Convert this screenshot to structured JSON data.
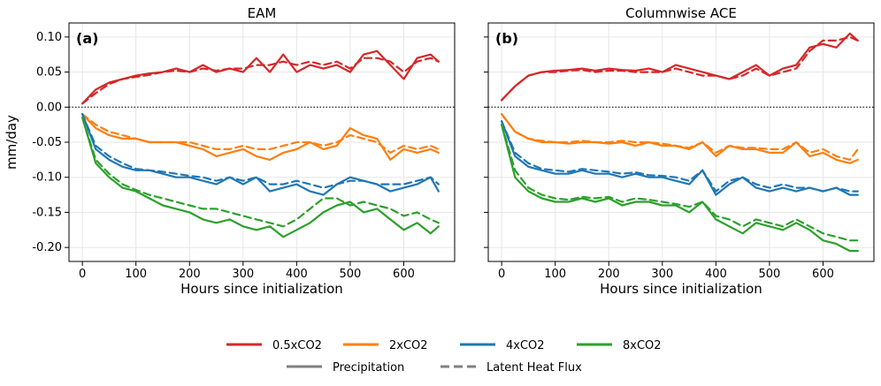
{
  "chart_data": [
    {
      "type": "line",
      "title": "EAM",
      "panel_label": "(a)",
      "xlabel": "Hours since initialization",
      "ylabel": "mm/day",
      "xlim": [
        -25,
        695
      ],
      "ylim": [
        -0.22,
        0.12
      ],
      "xticks": [
        "0",
        "100",
        "200",
        "300",
        "400",
        "500",
        "600"
      ],
      "yticks": [
        "0.10",
        "0.05",
        "0.00",
        "-0.05",
        "-0.10",
        "-0.15",
        "-0.20"
      ],
      "grid": true,
      "zero_line": true,
      "x": [
        0,
        25,
        50,
        75,
        100,
        125,
        150,
        175,
        200,
        225,
        250,
        275,
        300,
        325,
        350,
        375,
        400,
        425,
        450,
        475,
        500,
        525,
        550,
        575,
        600,
        625,
        650,
        665
      ],
      "series": [
        {
          "scenario": "0.5xCO2",
          "variable": "Precipitation",
          "values": [
            0.005,
            0.025,
            0.035,
            0.04,
            0.045,
            0.048,
            0.05,
            0.055,
            0.05,
            0.06,
            0.05,
            0.055,
            0.05,
            0.07,
            0.05,
            0.075,
            0.05,
            0.06,
            0.055,
            0.06,
            0.05,
            0.075,
            0.08,
            0.06,
            0.04,
            0.07,
            0.075,
            0.065
          ]
        },
        {
          "scenario": "0.5xCO2",
          "variable": "Latent Heat Flux",
          "values": [
            0.005,
            0.02,
            0.033,
            0.04,
            0.043,
            0.046,
            0.05,
            0.052,
            0.05,
            0.055,
            0.052,
            0.055,
            0.055,
            0.06,
            0.06,
            0.065,
            0.06,
            0.065,
            0.06,
            0.065,
            0.055,
            0.07,
            0.07,
            0.065,
            0.05,
            0.065,
            0.07,
            0.065
          ]
        },
        {
          "scenario": "2xCO2",
          "variable": "Precipitation",
          "values": [
            -0.01,
            -0.03,
            -0.04,
            -0.045,
            -0.045,
            -0.05,
            -0.05,
            -0.05,
            -0.055,
            -0.06,
            -0.07,
            -0.065,
            -0.06,
            -0.07,
            -0.075,
            -0.065,
            -0.06,
            -0.05,
            -0.06,
            -0.055,
            -0.03,
            -0.04,
            -0.045,
            -0.075,
            -0.06,
            -0.065,
            -0.06,
            -0.065
          ]
        },
        {
          "scenario": "2xCO2",
          "variable": "Latent Heat Flux",
          "values": [
            -0.01,
            -0.025,
            -0.035,
            -0.04,
            -0.045,
            -0.05,
            -0.05,
            -0.05,
            -0.05,
            -0.055,
            -0.06,
            -0.06,
            -0.055,
            -0.06,
            -0.06,
            -0.055,
            -0.05,
            -0.05,
            -0.055,
            -0.05,
            -0.04,
            -0.045,
            -0.05,
            -0.065,
            -0.055,
            -0.06,
            -0.055,
            -0.06
          ]
        },
        {
          "scenario": "4xCO2",
          "variable": "Precipitation",
          "values": [
            -0.01,
            -0.06,
            -0.075,
            -0.085,
            -0.09,
            -0.09,
            -0.095,
            -0.1,
            -0.1,
            -0.105,
            -0.11,
            -0.1,
            -0.11,
            -0.1,
            -0.12,
            -0.115,
            -0.11,
            -0.12,
            -0.125,
            -0.11,
            -0.1,
            -0.105,
            -0.11,
            -0.12,
            -0.115,
            -0.11,
            -0.1,
            -0.12
          ]
        },
        {
          "scenario": "4xCO2",
          "variable": "Latent Heat Flux",
          "values": [
            -0.01,
            -0.055,
            -0.07,
            -0.08,
            -0.088,
            -0.09,
            -0.092,
            -0.095,
            -0.098,
            -0.1,
            -0.105,
            -0.1,
            -0.105,
            -0.1,
            -0.11,
            -0.11,
            -0.105,
            -0.11,
            -0.115,
            -0.11,
            -0.105,
            -0.105,
            -0.11,
            -0.11,
            -0.11,
            -0.105,
            -0.1,
            -0.11
          ]
        },
        {
          "scenario": "8xCO2",
          "variable": "Precipitation",
          "values": [
            -0.015,
            -0.08,
            -0.1,
            -0.115,
            -0.12,
            -0.13,
            -0.14,
            -0.145,
            -0.15,
            -0.16,
            -0.165,
            -0.16,
            -0.17,
            -0.175,
            -0.17,
            -0.185,
            -0.175,
            -0.165,
            -0.15,
            -0.14,
            -0.135,
            -0.15,
            -0.145,
            -0.16,
            -0.175,
            -0.165,
            -0.18,
            -0.17
          ]
        },
        {
          "scenario": "8xCO2",
          "variable": "Latent Heat Flux",
          "values": [
            -0.015,
            -0.075,
            -0.095,
            -0.11,
            -0.118,
            -0.125,
            -0.13,
            -0.135,
            -0.14,
            -0.145,
            -0.145,
            -0.15,
            -0.155,
            -0.16,
            -0.165,
            -0.17,
            -0.16,
            -0.145,
            -0.13,
            -0.13,
            -0.14,
            -0.135,
            -0.14,
            -0.145,
            -0.155,
            -0.15,
            -0.16,
            -0.165
          ]
        }
      ]
    },
    {
      "type": "line",
      "title": "Columnwise ACE",
      "panel_label": "(b)",
      "xlabel": "Hours since initialization",
      "ylabel": "",
      "xlim": [
        -25,
        695
      ],
      "ylim": [
        -0.22,
        0.12
      ],
      "xticks": [
        "0",
        "100",
        "200",
        "300",
        "400",
        "500",
        "600"
      ],
      "yticks": [],
      "grid": true,
      "zero_line": true,
      "x": [
        0,
        25,
        50,
        75,
        100,
        125,
        150,
        175,
        200,
        225,
        250,
        275,
        300,
        325,
        350,
        375,
        400,
        425,
        450,
        475,
        500,
        525,
        550,
        575,
        600,
        625,
        650,
        665
      ],
      "series": [
        {
          "scenario": "0.5xCO2",
          "variable": "Precipitation",
          "values": [
            0.01,
            0.03,
            0.045,
            0.05,
            0.052,
            0.053,
            0.055,
            0.052,
            0.055,
            0.053,
            0.052,
            0.055,
            0.05,
            0.06,
            0.055,
            0.05,
            0.045,
            0.04,
            0.05,
            0.06,
            0.045,
            0.055,
            0.06,
            0.085,
            0.09,
            0.085,
            0.105,
            0.095
          ]
        },
        {
          "scenario": "0.5xCO2",
          "variable": "Latent Heat Flux",
          "values": [
            0.01,
            0.03,
            0.045,
            0.05,
            0.05,
            0.052,
            0.053,
            0.05,
            0.052,
            0.052,
            0.05,
            0.05,
            0.05,
            0.055,
            0.05,
            0.045,
            0.045,
            0.04,
            0.045,
            0.055,
            0.045,
            0.05,
            0.055,
            0.08,
            0.095,
            0.095,
            0.1,
            0.095
          ]
        },
        {
          "scenario": "2xCO2",
          "variable": "Precipitation",
          "values": [
            -0.01,
            -0.035,
            -0.045,
            -0.05,
            -0.05,
            -0.052,
            -0.05,
            -0.05,
            -0.052,
            -0.05,
            -0.055,
            -0.05,
            -0.055,
            -0.055,
            -0.06,
            -0.05,
            -0.07,
            -0.055,
            -0.06,
            -0.06,
            -0.065,
            -0.065,
            -0.05,
            -0.07,
            -0.065,
            -0.075,
            -0.08,
            -0.075
          ]
        },
        {
          "scenario": "2xCO2",
          "variable": "Latent Heat Flux",
          "values": [
            -0.01,
            -0.035,
            -0.045,
            -0.048,
            -0.05,
            -0.05,
            -0.048,
            -0.05,
            -0.05,
            -0.048,
            -0.05,
            -0.05,
            -0.052,
            -0.055,
            -0.058,
            -0.05,
            -0.065,
            -0.055,
            -0.058,
            -0.058,
            -0.06,
            -0.06,
            -0.05,
            -0.065,
            -0.06,
            -0.07,
            -0.075,
            -0.06
          ]
        },
        {
          "scenario": "4xCO2",
          "variable": "Precipitation",
          "values": [
            -0.02,
            -0.07,
            -0.085,
            -0.09,
            -0.095,
            -0.095,
            -0.09,
            -0.095,
            -0.095,
            -0.1,
            -0.095,
            -0.1,
            -0.1,
            -0.105,
            -0.11,
            -0.09,
            -0.125,
            -0.11,
            -0.1,
            -0.115,
            -0.12,
            -0.115,
            -0.12,
            -0.115,
            -0.12,
            -0.115,
            -0.125,
            -0.125
          ]
        },
        {
          "scenario": "4xCO2",
          "variable": "Latent Heat Flux",
          "values": [
            -0.02,
            -0.065,
            -0.08,
            -0.088,
            -0.09,
            -0.092,
            -0.088,
            -0.09,
            -0.092,
            -0.095,
            -0.093,
            -0.097,
            -0.098,
            -0.1,
            -0.105,
            -0.09,
            -0.12,
            -0.105,
            -0.1,
            -0.11,
            -0.115,
            -0.11,
            -0.115,
            -0.115,
            -0.12,
            -0.115,
            -0.12,
            -0.12
          ]
        },
        {
          "scenario": "8xCO2",
          "variable": "Precipitation",
          "values": [
            -0.025,
            -0.1,
            -0.12,
            -0.13,
            -0.135,
            -0.135,
            -0.13,
            -0.135,
            -0.13,
            -0.14,
            -0.135,
            -0.135,
            -0.14,
            -0.14,
            -0.15,
            -0.135,
            -0.16,
            -0.17,
            -0.18,
            -0.165,
            -0.17,
            -0.175,
            -0.165,
            -0.175,
            -0.19,
            -0.195,
            -0.205,
            -0.205
          ]
        },
        {
          "scenario": "8xCO2",
          "variable": "Latent Heat Flux",
          "values": [
            -0.025,
            -0.09,
            -0.115,
            -0.125,
            -0.13,
            -0.132,
            -0.128,
            -0.13,
            -0.128,
            -0.135,
            -0.13,
            -0.132,
            -0.135,
            -0.138,
            -0.142,
            -0.135,
            -0.155,
            -0.16,
            -0.17,
            -0.16,
            -0.165,
            -0.17,
            -0.16,
            -0.17,
            -0.18,
            -0.185,
            -0.19,
            -0.19
          ]
        }
      ]
    }
  ],
  "colors": {
    "0.5xCO2": "#d62728",
    "2xCO2": "#ff7f0e",
    "4xCO2": "#1f77b4",
    "8xCO2": "#2ca02c",
    "style": "#808080",
    "grid": "#e6e6e6",
    "zero": "#000000"
  },
  "legend": {
    "placement": "bottom-center",
    "scenarios": [
      "0.5xCO2",
      "2xCO2",
      "4xCO2",
      "8xCO2"
    ],
    "styles": [
      {
        "label": "Precipitation",
        "dash": "solid"
      },
      {
        "label": "Latent Heat Flux",
        "dash": "dashed"
      }
    ]
  }
}
